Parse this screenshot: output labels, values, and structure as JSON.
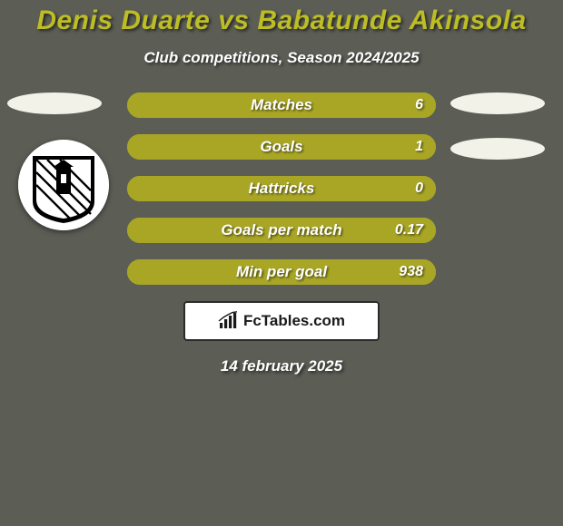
{
  "background_color": "#5c5e56",
  "title": {
    "text": "Denis Duarte vs Babatunde Akinsola",
    "color": "#bdbd25",
    "fontsize": 30
  },
  "subtitle": {
    "text": "Club competitions, Season 2024/2025",
    "color": "#ffffff",
    "fontsize": 17
  },
  "ellipses": {
    "width": 104,
    "height": 24,
    "color": "#f2f2e8"
  },
  "club_badge": {
    "size": 100,
    "bg": "#ffffff"
  },
  "bars": {
    "fill_color": "#a9a626",
    "border_color": "#a9a626",
    "border_width": 2,
    "label_color": "#ffffff",
    "label_fontsize": 17,
    "value_color": "#ffffff",
    "value_fontsize": 16,
    "items": [
      {
        "label": "Matches",
        "value": "6"
      },
      {
        "label": "Goals",
        "value": "1"
      },
      {
        "label": "Hattricks",
        "value": "0"
      },
      {
        "label": "Goals per match",
        "value": "0.17"
      },
      {
        "label": "Min per goal",
        "value": "938"
      }
    ]
  },
  "brand": {
    "box_bg": "#ffffff",
    "box_border": "#2b2b2b",
    "text": "FcTables.com",
    "text_color": "#1a1a1a",
    "text_fontsize": 17,
    "icon_color": "#1a1a1a"
  },
  "date": {
    "text": "14 february 2025",
    "color": "#ffffff",
    "fontsize": 17
  }
}
